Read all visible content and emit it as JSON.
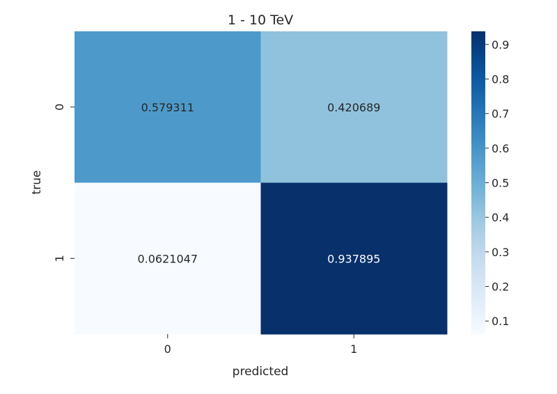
{
  "chart_data": {
    "type": "heatmap",
    "title": "1 - 10 TeV",
    "xlabel": "predicted",
    "ylabel": "true",
    "x_categories": [
      "0",
      "1"
    ],
    "y_categories": [
      "0",
      "1"
    ],
    "values": [
      [
        0.579311,
        0.420689
      ],
      [
        0.0621047,
        0.937895
      ]
    ],
    "cell_labels": [
      [
        "0.579311",
        "0.420689"
      ],
      [
        "0.0621047",
        "0.937895"
      ]
    ],
    "colormap": "Blues",
    "colorbar": {
      "range": [
        0.0621047,
        0.937895
      ],
      "ticks": [
        0.1,
        0.2,
        0.3,
        0.4,
        0.5,
        0.6,
        0.7,
        0.8,
        0.9
      ],
      "tick_labels": [
        "0.1",
        "0.2",
        "0.3",
        "0.4",
        "0.5",
        "0.6",
        "0.7",
        "0.8",
        "0.9"
      ]
    },
    "grid": false
  }
}
